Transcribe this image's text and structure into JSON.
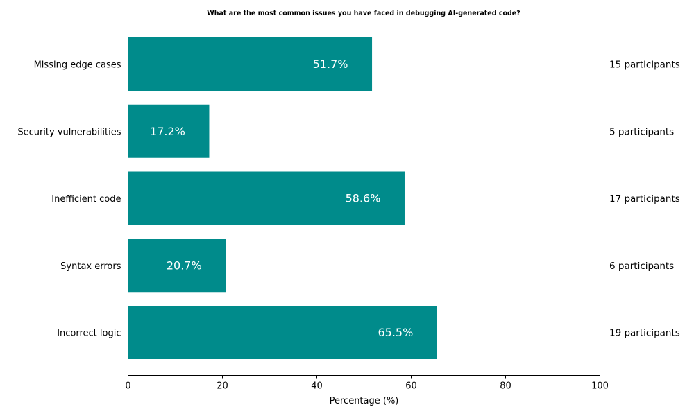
{
  "chart_data": {
    "type": "bar",
    "orientation": "horizontal",
    "title": "What are the most common issues you have faced in debugging AI-generated code?",
    "xlabel": "Percentage (%)",
    "ylabel": "",
    "xlim": [
      0,
      100
    ],
    "xticks": [
      "0",
      "20",
      "40",
      "60",
      "80",
      "100"
    ],
    "grid": false,
    "bar_color": "#008b8b",
    "categories": [
      "Incorrect logic",
      "Syntax errors",
      "Inefficient code",
      "Security vulnerabilities",
      "Missing edge cases"
    ],
    "values": [
      65.5,
      20.7,
      58.6,
      17.2,
      51.7
    ],
    "value_labels": [
      "65.5%",
      "20.7%",
      "58.6%",
      "17.2%",
      "51.7%"
    ],
    "participant_labels": [
      "19 participants",
      "6 participants",
      "17 participants",
      "5 participants",
      "15 participants"
    ]
  }
}
